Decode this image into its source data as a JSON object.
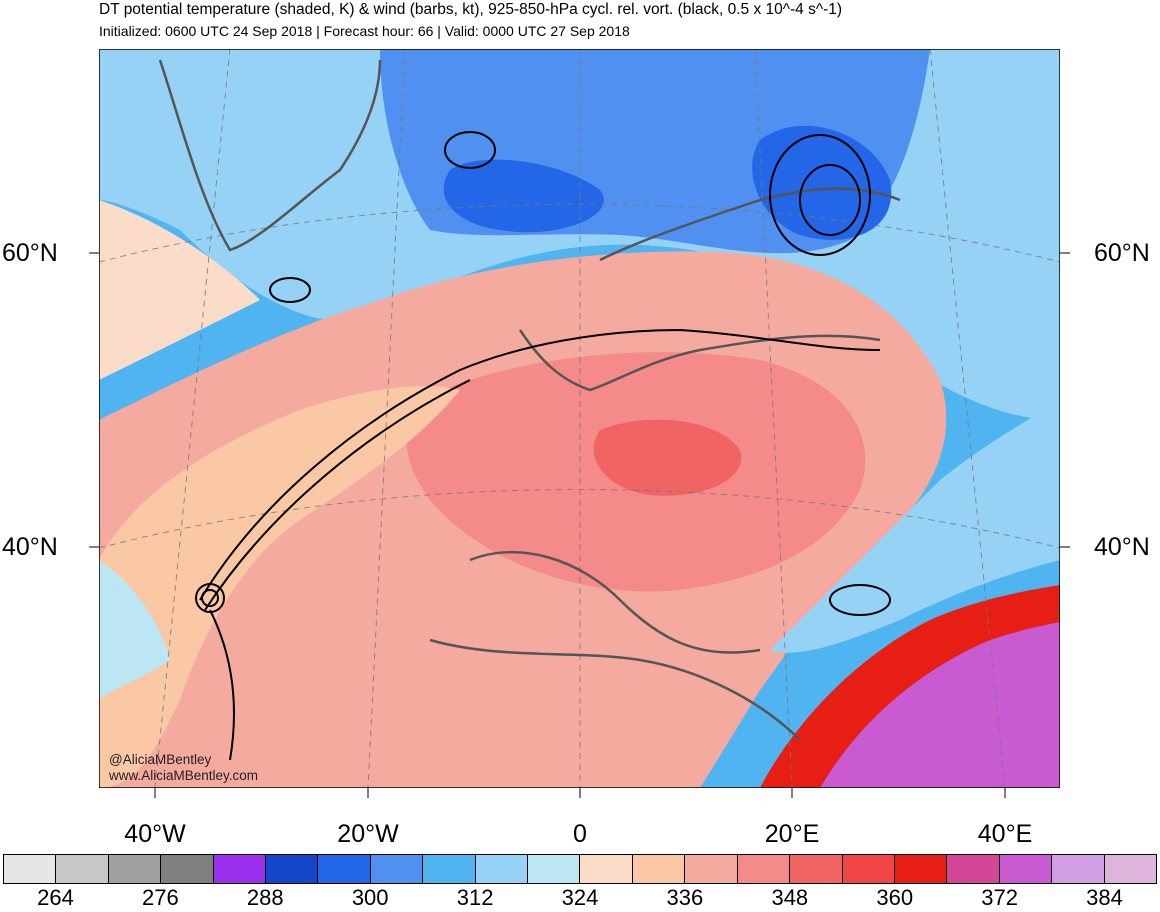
{
  "header": {
    "title": "DT potential temperature (shaded, K) & wind (barbs, kt), 925-850-hPa cycl. rel. vort. (black, 0.5 x 10^-4 s^-1)",
    "subtitle": "Initialized: 0600 UTC 24 Sep 2018 | Forecast hour: 66 | Valid: 0000 UTC 27 Sep 2018"
  },
  "map": {
    "lat_labels_left": [
      "60°N",
      "40°N"
    ],
    "lat_labels_right": [
      "60°N",
      "40°N"
    ],
    "lon_labels": [
      "40°W",
      "20°W",
      "0",
      "20°E",
      "40°E"
    ],
    "watermark": [
      "@AliciaMBentley",
      "www.AliciaMBentley.com"
    ]
  },
  "colorbar": {
    "colors": [
      "#e6e6e6",
      "#c8c8c8",
      "#a0a0a0",
      "#7f7f7f",
      "#9b30ee",
      "#1446c8",
      "#2466e8",
      "#5090f0",
      "#50b4f0",
      "#96d2f5",
      "#bde6f5",
      "#fadcc8",
      "#fac8a5",
      "#f5aaa0",
      "#f58a8a",
      "#f06464",
      "#f04646",
      "#e61e14",
      "#d24696",
      "#c85ad2",
      "#d29ee6",
      "#dcb4dc"
    ],
    "tick_labels": [
      "264",
      "276",
      "288",
      "300",
      "312",
      "324",
      "336",
      "348",
      "360",
      "372",
      "384"
    ]
  }
}
